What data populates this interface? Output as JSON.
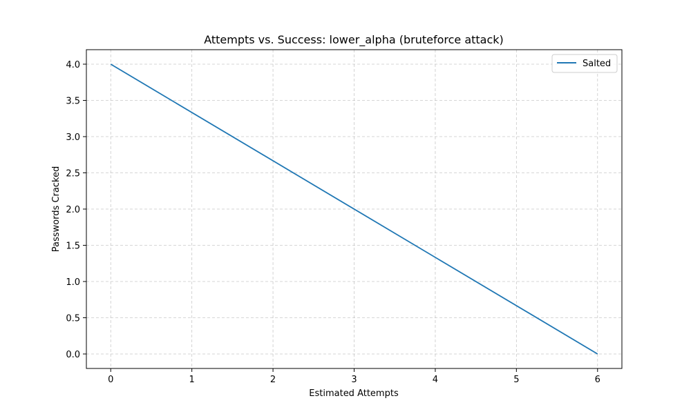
{
  "chart_data": {
    "type": "line",
    "title": "Attempts vs. Success: lower_alpha (bruteforce attack)",
    "xlabel": "Estimated Attempts",
    "ylabel": "Passwords Cracked",
    "xlim": [
      -0.3,
      6.3
    ],
    "ylim": [
      -0.2,
      4.2
    ],
    "xticks": [
      0,
      1,
      2,
      3,
      4,
      5,
      6
    ],
    "xtick_labels": [
      "0",
      "1",
      "2",
      "3",
      "4",
      "5",
      "6"
    ],
    "yticks": [
      0.0,
      0.5,
      1.0,
      1.5,
      2.0,
      2.5,
      3.0,
      3.5,
      4.0
    ],
    "ytick_labels": [
      "0.0",
      "0.5",
      "1.0",
      "1.5",
      "2.0",
      "2.5",
      "3.0",
      "3.5",
      "4.0"
    ],
    "grid": true,
    "legend_position": "top-right",
    "series": [
      {
        "name": "Salted",
        "color": "#1f77b4",
        "x": [
          0,
          6
        ],
        "y": [
          4,
          0
        ]
      }
    ]
  }
}
